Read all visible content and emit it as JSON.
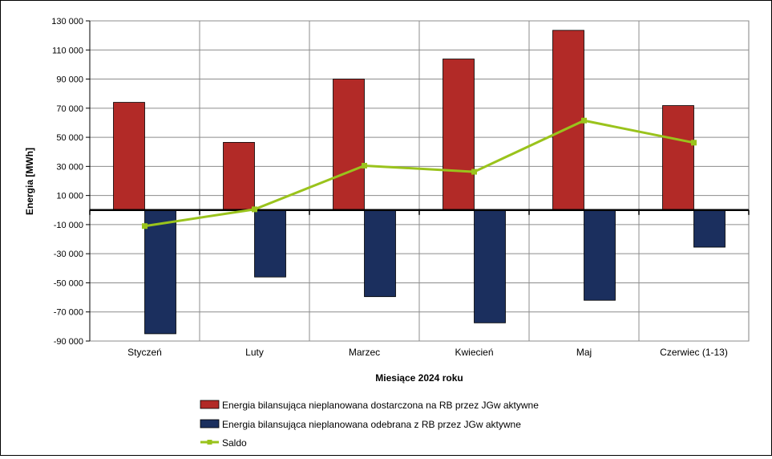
{
  "chart_data": {
    "type": "bar",
    "title": "",
    "xlabel": "Miesiące 2024 roku",
    "ylabel": "Energia [MWh]",
    "ylim": [
      -90000,
      130000
    ],
    "yticks": [
      130000,
      110000,
      90000,
      70000,
      50000,
      30000,
      10000,
      -10000,
      -30000,
      -50000,
      -70000,
      -90000
    ],
    "ytick_labels": [
      "130 000",
      "110 000",
      "90 000",
      "70 000",
      "50 000",
      "30 000",
      "10 000",
      "-10 000",
      "-30 000",
      "-50 000",
      "-70 000",
      "-90 000"
    ],
    "grid": true,
    "legend_position": "bottom",
    "categories": [
      "Styczeń",
      "Luty",
      "Marzec",
      "Kwiecień",
      "Maj",
      "Czerwiec (1-13)"
    ],
    "series": [
      {
        "name": "Energia bilansująca nieplanowana dostarczona na RB przez JGw aktywne",
        "kind": "bar",
        "color": "#b22a27",
        "values": [
          74000,
          46500,
          90000,
          103800,
          123500,
          71800
        ]
      },
      {
        "name": "Energia bilansująca nieplanowana odebrana z RB przez JGw aktywne",
        "kind": "bar",
        "color": "#1b2f5e",
        "values": [
          -85000,
          -46000,
          -59500,
          -77500,
          -62000,
          -25500
        ]
      },
      {
        "name": "Saldo",
        "kind": "line",
        "color": "#9ac31c",
        "values": [
          -11000,
          500,
          30500,
          26300,
          61500,
          46300
        ]
      }
    ]
  }
}
